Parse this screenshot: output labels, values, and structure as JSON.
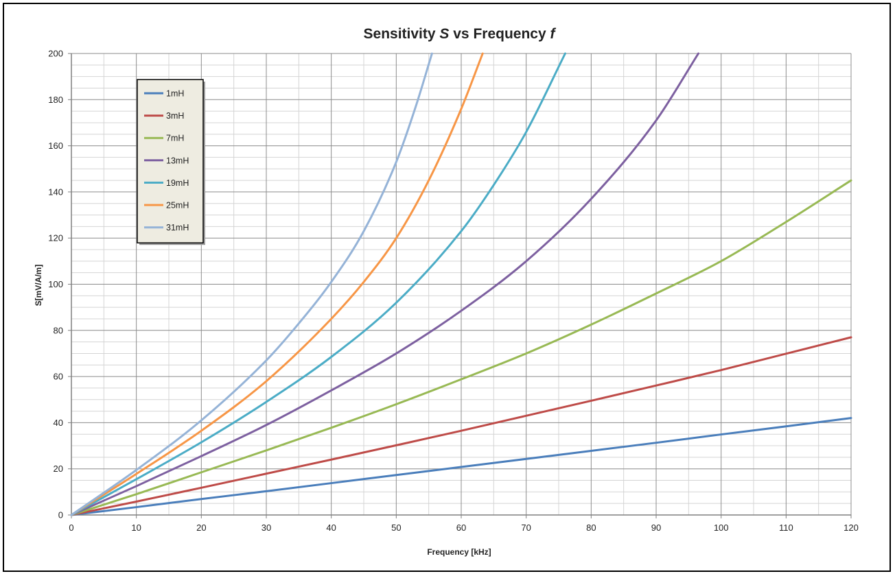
{
  "chart_data": {
    "type": "line",
    "title_parts": [
      {
        "text": "Sensitivity ",
        "italic": false
      },
      {
        "text": "S",
        "italic": true
      },
      {
        "text": " vs Frequency ",
        "italic": false
      },
      {
        "text": "f",
        "italic": true
      }
    ],
    "title": "Sensitivity S vs Frequency f",
    "xlabel": "Frequency [kHz]",
    "ylabel": "S[mV/A/m]",
    "xlim": [
      0,
      120
    ],
    "ylim": [
      0,
      200
    ],
    "xticks": [
      0,
      10,
      20,
      30,
      40,
      50,
      60,
      70,
      80,
      90,
      100,
      110,
      120
    ],
    "yticks": [
      0,
      20,
      40,
      60,
      80,
      100,
      120,
      140,
      160,
      180,
      200
    ],
    "grid": true,
    "legend_position": "top-left",
    "series": [
      {
        "name": "1mH",
        "color": "#4a7ebb",
        "x": [
          0,
          10,
          20,
          30,
          40,
          50,
          60,
          70,
          80,
          90,
          100,
          110,
          120
        ],
        "y": [
          0,
          3.4,
          6.9,
          10.3,
          13.8,
          17.3,
          20.8,
          24.3,
          27.8,
          31.3,
          34.9,
          38.4,
          42
        ]
      },
      {
        "name": "3mH",
        "color": "#be4b48",
        "x": [
          0,
          10,
          20,
          30,
          40,
          50,
          60,
          70,
          80,
          90,
          100,
          110,
          120
        ],
        "y": [
          0,
          5.8,
          11.8,
          17.9,
          24,
          30.2,
          36.5,
          43,
          49.5,
          56.1,
          62.8,
          69.9,
          77
        ]
      },
      {
        "name": "7mH",
        "color": "#98b954",
        "x": [
          0,
          10,
          20,
          30,
          40,
          50,
          60,
          70,
          80,
          90,
          100,
          110,
          120
        ],
        "y": [
          0,
          9,
          18.5,
          28,
          37.8,
          48,
          58.8,
          70,
          82.5,
          96,
          110,
          127,
          145
        ]
      },
      {
        "name": "13mH",
        "color": "#7d60a0",
        "x": [
          0,
          10,
          20,
          30,
          40,
          50,
          60,
          70,
          80,
          90,
          96.5
        ],
        "y": [
          0,
          12.5,
          25.5,
          39,
          54,
          70,
          88.5,
          110,
          137,
          171,
          200
        ]
      },
      {
        "name": "19mH",
        "color": "#4bacc6",
        "x": [
          0,
          10,
          20,
          30,
          40,
          50,
          60,
          65,
          70,
          76
        ],
        "y": [
          0,
          15.5,
          31.5,
          49,
          68.5,
          92,
          123,
          143,
          166,
          200
        ]
      },
      {
        "name": "25mH",
        "color": "#f79646",
        "x": [
          0,
          10,
          20,
          30,
          40,
          45,
          50,
          55,
          60,
          63.3
        ],
        "y": [
          0,
          17.8,
          36.5,
          58,
          85,
          101,
          120,
          145,
          176,
          200
        ]
      },
      {
        "name": "31mH",
        "color": "#95b3d7",
        "x": [
          0,
          10,
          20,
          30,
          35,
          40,
          45,
          50,
          53,
          55.5
        ],
        "y": [
          0,
          19.5,
          41,
          67,
          83,
          101,
          123,
          153,
          177,
          200
        ]
      }
    ]
  }
}
